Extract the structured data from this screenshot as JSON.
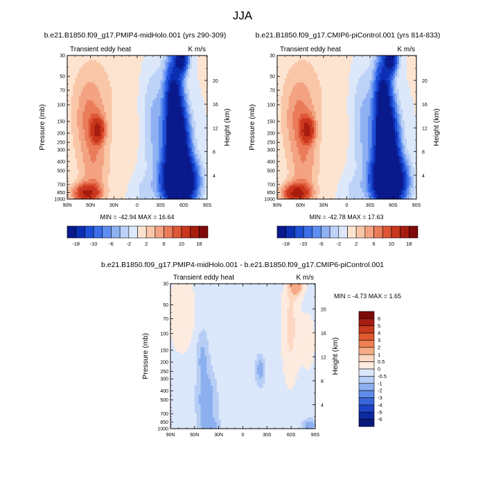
{
  "figure": {
    "title": "JJA"
  },
  "chart_data": [
    {
      "type": "heatmap",
      "title": "b.e21.B1850.f09_g17.PMIP4-midHolo.001 (yrs 290-309)",
      "left_title": "Transient eddy heat",
      "units": "K m/s",
      "xlabel": "",
      "ylabel": "Pressure (mb)",
      "right_axis_label": "Height (km)",
      "x_tick_labels": [
        "90N",
        "60N",
        "30N",
        "0",
        "30S",
        "60S",
        "90S"
      ],
      "y_tick_labels": [
        "30",
        "50",
        "70",
        "100",
        "150",
        "200",
        "250",
        "300",
        "400",
        "500",
        "700",
        "850",
        "1000"
      ],
      "height_tick_labels": [
        "20",
        "16",
        "12",
        "8",
        "4"
      ],
      "stats": "MIN = -42.94   MAX =  16.64",
      "min": -42.94,
      "max": 16.64,
      "colorbar_labels": [
        "-18",
        "-10",
        "-6",
        "-2",
        "2",
        "6",
        "10",
        "18"
      ]
    },
    {
      "type": "heatmap",
      "title": "b.e21.B1850.f09_g17.CMIP6-piControl.001 (yrs 814-833)",
      "left_title": "Transient eddy heat",
      "units": "K m/s",
      "xlabel": "",
      "ylabel": "Pressure (mb)",
      "right_axis_label": "Height (km)",
      "x_tick_labels": [
        "90N",
        "60N",
        "30N",
        "0",
        "30S",
        "60S",
        "90S"
      ],
      "y_tick_labels": [
        "30",
        "50",
        "70",
        "100",
        "150",
        "200",
        "250",
        "300",
        "400",
        "500",
        "700",
        "850",
        "1000"
      ],
      "height_tick_labels": [
        "20",
        "16",
        "12",
        "8",
        "4"
      ],
      "stats": "MIN = -42.78   MAX =  17.63",
      "min": -42.78,
      "max": 17.63,
      "colorbar_labels": [
        "-18",
        "-10",
        "-6",
        "-2",
        "2",
        "6",
        "10",
        "18"
      ]
    },
    {
      "type": "heatmap",
      "title": "b.e21.B1850.f09_g17.PMIP4-midHolo.001 - b.e21.B1850.f09_g17.CMIP6-piControl.001",
      "left_title": "Transient eddy heat",
      "units": "K m/s",
      "xlabel": "",
      "ylabel": "Pressure (mb)",
      "right_axis_label": "Height (km)",
      "x_tick_labels": [
        "90N",
        "60N",
        "30N",
        "0",
        "30S",
        "60S",
        "90S"
      ],
      "y_tick_labels": [
        "30",
        "50",
        "70",
        "100",
        "150",
        "200",
        "250",
        "300",
        "400",
        "500",
        "700",
        "850",
        "1000"
      ],
      "height_tick_labels": [
        "20",
        "16",
        "12",
        "8",
        "4"
      ],
      "stats": "MIN =  -4.73   MAX =    1.65",
      "min": -4.73,
      "max": 1.65,
      "colorbar_labels": [
        "6",
        "5",
        "4",
        "3",
        "2",
        "1",
        "0.5",
        "0",
        "-0.5",
        "-1",
        "-2",
        "-3",
        "-4",
        "-5",
        "-6"
      ]
    }
  ],
  "colors": {
    "top_colorbar": [
      "#0a1a8c",
      "#0d2fb3",
      "#1f4fd6",
      "#3b6ee8",
      "#5f8ef0",
      "#8fb0f3",
      "#bcd2f7",
      "#dce8fa",
      "#fde4d0",
      "#f9c7a8",
      "#f3a382",
      "#ea7c5a",
      "#dd5636",
      "#c9361d",
      "#a81c10",
      "#800a0a"
    ],
    "diff_colorbar": [
      "#7d0a0a",
      "#a61d12",
      "#c93a1e",
      "#e05a2e",
      "#ef8052",
      "#f5ab86",
      "#fcd8c2",
      "#fdebe0",
      "#dbe7fa",
      "#b6cdf5",
      "#8cb0ef",
      "#5f8ce8",
      "#3a66dd",
      "#1e43c4",
      "#0d2aa0",
      "#081b7a"
    ]
  }
}
